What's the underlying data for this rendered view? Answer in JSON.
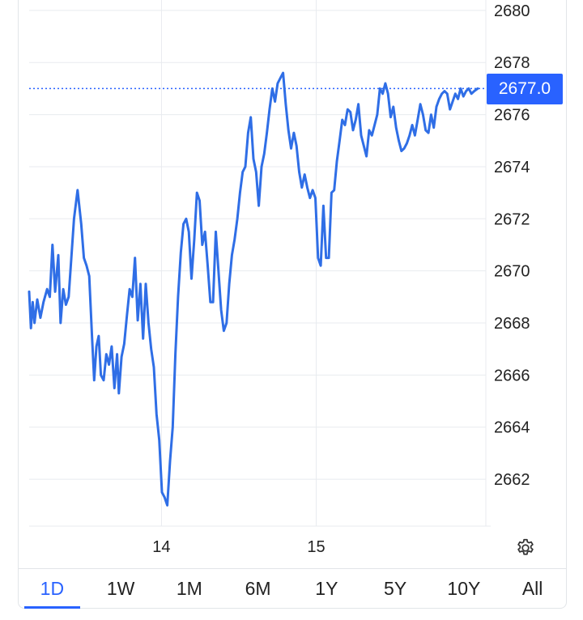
{
  "colors": {
    "line": "#2f6ee6",
    "accent": "#2962ff",
    "grid": "#e8ebef"
  },
  "price_label": "2677.0",
  "settings_icon": "gear-icon",
  "tabs": [
    {
      "label": "1D",
      "active": true
    },
    {
      "label": "1W",
      "active": false
    },
    {
      "label": "1M",
      "active": false
    },
    {
      "label": "6M",
      "active": false
    },
    {
      "label": "1Y",
      "active": false
    },
    {
      "label": "5Y",
      "active": false
    },
    {
      "label": "10Y",
      "active": false
    },
    {
      "label": "All",
      "active": false
    }
  ],
  "chart_data": {
    "type": "line",
    "ylim": [
      2660.2,
      2680.4
    ],
    "yticks": [
      2662,
      2664,
      2666,
      2668,
      2670,
      2672,
      2674,
      2676,
      2678,
      2680
    ],
    "xticks": [
      {
        "x": 0.295,
        "label": "14"
      },
      {
        "x": 0.64,
        "label": "15"
      }
    ],
    "last_value": 2677.0,
    "grid": true,
    "series": [
      {
        "x": [
          0,
          0.004,
          0.008,
          0.012,
          0.018,
          0.025,
          0.032,
          0.04,
          0.046,
          0.052,
          0.058,
          0.065,
          0.07,
          0.076,
          0.082,
          0.088,
          0.094,
          0.1,
          0.108,
          0.116,
          0.122,
          0.128,
          0.134,
          0.14,
          0.145,
          0.15,
          0.155,
          0.16,
          0.166,
          0.172,
          0.178,
          0.184,
          0.19,
          0.196,
          0.2,
          0.206,
          0.212,
          0.218,
          0.224,
          0.23,
          0.236,
          0.242,
          0.248,
          0.254,
          0.26,
          0.266,
          0.272,
          0.278,
          0.284,
          0.29,
          0.296,
          0.302,
          0.308,
          0.314,
          0.32,
          0.326,
          0.332,
          0.338,
          0.344,
          0.35,
          0.356,
          0.362,
          0.368,
          0.374,
          0.38,
          0.386,
          0.392,
          0.398,
          0.404,
          0.41,
          0.416,
          0.422,
          0.428,
          0.434,
          0.44,
          0.446,
          0.452,
          0.458,
          0.464,
          0.47,
          0.476,
          0.482,
          0.488,
          0.494,
          0.5,
          0.506,
          0.512,
          0.518,
          0.524,
          0.53,
          0.536,
          0.542,
          0.548,
          0.554,
          0.56,
          0.566,
          0.572,
          0.578,
          0.584,
          0.59,
          0.596,
          0.602,
          0.608,
          0.614,
          0.62,
          0.626,
          0.632,
          0.638,
          0.644,
          0.65,
          0.656,
          0.662,
          0.668,
          0.674,
          0.68,
          0.686,
          0.692,
          0.698,
          0.704,
          0.71,
          0.716,
          0.722,
          0.728,
          0.734,
          0.74,
          0.746,
          0.752,
          0.758,
          0.764,
          0.77,
          0.776,
          0.782,
          0.788,
          0.794,
          0.8,
          0.806,
          0.812,
          0.818,
          0.824,
          0.83,
          0.836,
          0.842,
          0.848,
          0.854,
          0.86,
          0.866,
          0.872,
          0.878,
          0.884,
          0.89,
          0.896,
          0.902,
          0.908,
          0.914,
          0.92,
          0.926,
          0.932,
          0.938,
          0.944,
          0.95,
          0.956,
          0.962,
          0.968,
          0.974,
          0.98,
          0.986,
          0.992,
          1.0
        ],
        "values": [
          2669.2,
          2667.8,
          2668.8,
          2668.0,
          2668.9,
          2668.2,
          2668.8,
          2669.3,
          2669.0,
          2671.0,
          2669.2,
          2670.6,
          2668.0,
          2669.3,
          2668.7,
          2669.0,
          2670.5,
          2672.0,
          2673.1,
          2671.8,
          2670.5,
          2670.2,
          2669.8,
          2667.5,
          2665.8,
          2667.1,
          2667.5,
          2666.0,
          2665.8,
          2666.8,
          2666.4,
          2667.1,
          2665.5,
          2666.8,
          2665.3,
          2666.7,
          2667.2,
          2668.3,
          2669.3,
          2669.0,
          2670.5,
          2668.1,
          2669.5,
          2667.4,
          2669.5,
          2668.0,
          2667.0,
          2666.3,
          2664.5,
          2663.5,
          2661.5,
          2661.3,
          2661.0,
          2662.7,
          2664.0,
          2666.8,
          2669.0,
          2670.7,
          2671.8,
          2672.0,
          2671.5,
          2669.7,
          2671.2,
          2673.0,
          2672.7,
          2671.0,
          2671.5,
          2670.2,
          2668.8,
          2668.8,
          2671.5,
          2670.0,
          2668.5,
          2667.7,
          2668.0,
          2669.5,
          2670.6,
          2671.2,
          2672.0,
          2673.0,
          2673.8,
          2674.0,
          2675.3,
          2675.9,
          2674.3,
          2673.8,
          2672.5,
          2674.0,
          2674.5,
          2675.3,
          2676.2,
          2677.0,
          2676.5,
          2677.2,
          2677.4,
          2677.6,
          2676.4,
          2675.4,
          2674.7,
          2675.3,
          2674.8,
          2673.8,
          2673.2,
          2673.7,
          2673.2,
          2672.8,
          2673.1,
          2672.8,
          2670.5,
          2670.2,
          2672.5,
          2670.5,
          2670.5,
          2673.0,
          2673.1,
          2674.2,
          2675.0,
          2675.8,
          2675.6,
          2676.2,
          2676.1,
          2675.4,
          2675.8,
          2676.4,
          2675.2,
          2674.8,
          2674.4,
          2675.4,
          2675.2,
          2675.6,
          2676.0,
          2677.0,
          2676.8,
          2677.2,
          2676.8,
          2675.9,
          2676.3,
          2675.5,
          2675.0,
          2674.6,
          2674.7,
          2674.9,
          2675.2,
          2675.6,
          2675.2,
          2675.8,
          2676.4,
          2676.0,
          2675.4,
          2675.3,
          2676.0,
          2675.5,
          2676.3,
          2676.6,
          2676.8,
          2676.9,
          2676.8,
          2676.2,
          2676.5,
          2676.8,
          2676.6,
          2677.0,
          2676.7,
          2676.9,
          2677.0,
          2676.8,
          2676.9,
          2677.0
        ]
      }
    ]
  }
}
